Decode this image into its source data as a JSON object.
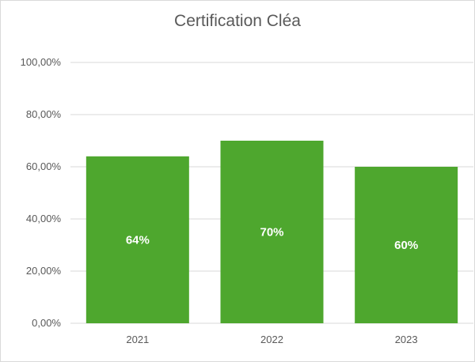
{
  "chart_data": {
    "type": "bar",
    "title": "Certification Cléa",
    "xlabel": "",
    "ylabel": "",
    "categories": [
      "2021",
      "2022",
      "2023"
    ],
    "values": [
      64,
      70,
      60
    ],
    "data_labels": [
      "64%",
      "70%",
      "60%"
    ],
    "y_ticks": [
      0,
      20,
      40,
      60,
      80,
      100
    ],
    "y_tick_labels": [
      "0,00%",
      "20,00%",
      "40,00%",
      "60,00%",
      "80,00%",
      "100,00%"
    ],
    "ylim": [
      0,
      100
    ],
    "grid": true,
    "legend": "none",
    "bar_color": "#4ea72e",
    "grid_color": "#d9d9d9"
  }
}
